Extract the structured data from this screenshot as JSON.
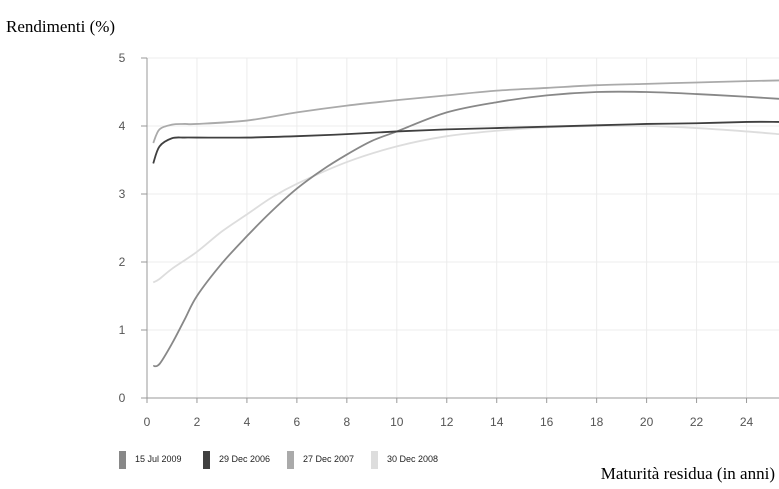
{
  "chart_data": {
    "type": "line",
    "ylabel": "Rendimenti (%)",
    "xlabel": "Maturità residua (in anni)",
    "xlim": [
      0,
      25.3
    ],
    "ylim": [
      0,
      5
    ],
    "x_ticks": [
      0,
      2,
      4,
      6,
      8,
      10,
      12,
      14,
      16,
      18,
      20,
      22,
      24
    ],
    "y_ticks": [
      0,
      1,
      2,
      3,
      4,
      5
    ],
    "grid": true,
    "legend_position": "bottom-left",
    "series": [
      {
        "name": "15 Jul 2009",
        "color": "#888888",
        "x": [
          0.25,
          0.5,
          1,
          1.5,
          2,
          3,
          4,
          5,
          6,
          7,
          8,
          9,
          10,
          12,
          14,
          16,
          18,
          20,
          22,
          24,
          25.3
        ],
        "y": [
          0.47,
          0.5,
          0.8,
          1.15,
          1.5,
          1.98,
          2.38,
          2.75,
          3.08,
          3.35,
          3.58,
          3.78,
          3.92,
          4.2,
          4.35,
          4.45,
          4.5,
          4.5,
          4.47,
          4.43,
          4.4
        ]
      },
      {
        "name": "29 Dec 2006",
        "color": "#404040",
        "x": [
          0.25,
          0.5,
          1,
          1.5,
          2,
          4,
          6,
          8,
          10,
          12,
          14,
          16,
          18,
          20,
          22,
          24,
          25.3
        ],
        "y": [
          3.45,
          3.7,
          3.82,
          3.83,
          3.83,
          3.83,
          3.85,
          3.88,
          3.92,
          3.95,
          3.97,
          3.99,
          4.01,
          4.03,
          4.04,
          4.06,
          4.06
        ]
      },
      {
        "name": "27 Dec 2007",
        "color": "#aaaaaa",
        "x": [
          0.25,
          0.5,
          1,
          1.5,
          2,
          4,
          6,
          8,
          10,
          12,
          14,
          16,
          18,
          20,
          22,
          24,
          25.3
        ],
        "y": [
          3.75,
          3.95,
          4.02,
          4.03,
          4.03,
          4.08,
          4.2,
          4.3,
          4.38,
          4.45,
          4.52,
          4.56,
          4.6,
          4.62,
          4.64,
          4.66,
          4.67
        ]
      },
      {
        "name": "30 Dec 2008",
        "color": "#dddddd",
        "x": [
          0.25,
          0.5,
          1,
          2,
          3,
          4,
          5,
          6,
          8,
          10,
          12,
          14,
          16,
          18,
          20,
          22,
          24,
          25.3
        ],
        "y": [
          1.7,
          1.75,
          1.9,
          2.15,
          2.45,
          2.7,
          2.95,
          3.15,
          3.47,
          3.7,
          3.85,
          3.93,
          3.98,
          4.0,
          4.0,
          3.97,
          3.92,
          3.88
        ]
      }
    ]
  }
}
